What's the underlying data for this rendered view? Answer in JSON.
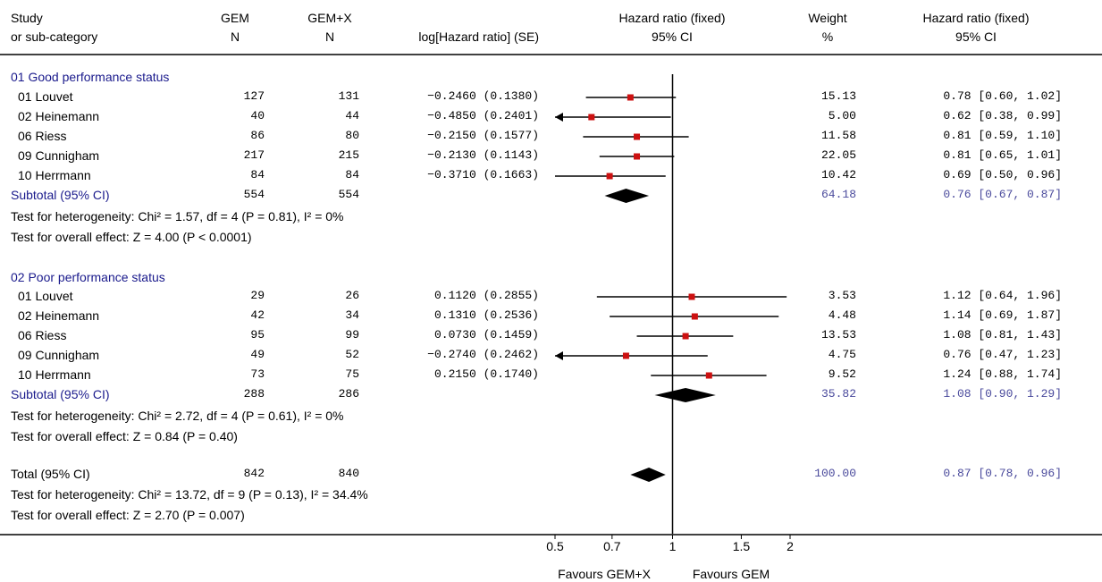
{
  "header": {
    "study": "Study",
    "subcat": "or sub-category",
    "gem": "GEM",
    "gem_n": "N",
    "gemx": "GEM+X",
    "gemx_n": "N",
    "loghr": "log[Hazard ratio] (SE)",
    "hr_fixed": "Hazard ratio (fixed)",
    "ci95": "95% CI",
    "weight": "Weight",
    "weight_pct": "%",
    "hr_fixed2": "Hazard ratio (fixed)",
    "ci95_2": "95% CI"
  },
  "groups": [
    {
      "title": "01 Good performance status",
      "studies": [
        {
          "name": "01 Louvet",
          "gem": "127",
          "gemx": "131",
          "loghr": "−0.2460 (0.1380)",
          "weight": "15.13",
          "hrci": "0.78 [0.60, 1.02]"
        },
        {
          "name": "02 Heinemann",
          "gem": "40",
          "gemx": "44",
          "loghr": "−0.4850 (0.2401)",
          "weight": "5.00",
          "hrci": "0.62 [0.38, 0.99]"
        },
        {
          "name": "06 Riess",
          "gem": "86",
          "gemx": "80",
          "loghr": "−0.2150 (0.1577)",
          "weight": "11.58",
          "hrci": "0.81 [0.59, 1.10]"
        },
        {
          "name": "09 Cunnigham",
          "gem": "217",
          "gemx": "215",
          "loghr": "−0.2130 (0.1143)",
          "weight": "22.05",
          "hrci": "0.81 [0.65, 1.01]"
        },
        {
          "name": "10 Herrmann",
          "gem": "84",
          "gemx": "84",
          "loghr": "−0.3710 (0.1663)",
          "weight": "10.42",
          "hrci": "0.69 [0.50, 0.96]"
        }
      ],
      "subtotal": {
        "label": "Subtotal (95% CI)",
        "gem": "554",
        "gemx": "554",
        "weight": "64.18",
        "hrci": "0.76 [0.67, 0.87]"
      },
      "het": "Test for heterogeneity: Chi² = 1.57, df = 4 (P = 0.81), I² = 0%",
      "overall": "Test for overall effect: Z = 4.00 (P < 0.0001)"
    },
    {
      "title": "02 Poor performance status",
      "studies": [
        {
          "name": "01 Louvet",
          "gem": "29",
          "gemx": "26",
          "loghr": "0.1120 (0.2855)",
          "weight": "3.53",
          "hrci": "1.12 [0.64, 1.96]"
        },
        {
          "name": "02 Heinemann",
          "gem": "42",
          "gemx": "34",
          "loghr": "0.1310 (0.2536)",
          "weight": "4.48",
          "hrci": "1.14 [0.69, 1.87]"
        },
        {
          "name": "06 Riess",
          "gem": "95",
          "gemx": "99",
          "loghr": "0.0730 (0.1459)",
          "weight": "13.53",
          "hrci": "1.08 [0.81, 1.43]"
        },
        {
          "name": "09 Cunnigham",
          "gem": "49",
          "gemx": "52",
          "loghr": "−0.2740 (0.2462)",
          "weight": "4.75",
          "hrci": "0.76 [0.47, 1.23]"
        },
        {
          "name": "10 Herrmann",
          "gem": "73",
          "gemx": "75",
          "loghr": "0.2150 (0.1740)",
          "weight": "9.52",
          "hrci": "1.24 [0.88, 1.74]"
        }
      ],
      "subtotal": {
        "label": "Subtotal (95% CI)",
        "gem": "288",
        "gemx": "286",
        "weight": "35.82",
        "hrci": "1.08 [0.90, 1.29]"
      },
      "het": "Test for heterogeneity: Chi² = 2.72, df = 4 (P = 0.61), I² = 0%",
      "overall": "Test for overall effect: Z = 0.84 (P = 0.40)"
    }
  ],
  "total": {
    "label": "Total (95% CI)",
    "gem": "842",
    "gemx": "840",
    "weight": "100.00",
    "hrci": "0.87 [0.78, 0.96]",
    "het": "Test for heterogeneity: Chi² = 13.72, df = 9 (P = 0.13), I² = 34.4%",
    "overall": "Test for overall effect: Z = 2.70 (P = 0.007)"
  },
  "axis": {
    "favours_left": "Favours GEM+X",
    "favours_right": "Favours GEM"
  },
  "colors": {
    "marker": "#cc1111",
    "group_title": "#1a1a8c",
    "subtotal_values": "#4a4a9c"
  },
  "chart_data": {
    "type": "forest",
    "x_scale": "log",
    "xlim": [
      0.5,
      2
    ],
    "ticks": [
      "0.5",
      "0.7",
      "1",
      "1.5",
      "2"
    ],
    "tick_values": [
      0.5,
      0.7,
      1,
      1.5,
      2
    ],
    "reference_line": 1,
    "series": [
      {
        "group": "01 Good performance status",
        "study": "01 Louvet",
        "hr": 0.78,
        "lo": 0.6,
        "hi": 1.02,
        "weight": 15.13
      },
      {
        "group": "01 Good performance status",
        "study": "02 Heinemann",
        "hr": 0.62,
        "lo": 0.38,
        "hi": 0.99,
        "weight": 5.0
      },
      {
        "group": "01 Good performance status",
        "study": "06 Riess",
        "hr": 0.81,
        "lo": 0.59,
        "hi": 1.1,
        "weight": 11.58
      },
      {
        "group": "01 Good performance status",
        "study": "09 Cunnigham",
        "hr": 0.81,
        "lo": 0.65,
        "hi": 1.01,
        "weight": 22.05
      },
      {
        "group": "01 Good performance status",
        "study": "10 Herrmann",
        "hr": 0.69,
        "lo": 0.5,
        "hi": 0.96,
        "weight": 10.42
      },
      {
        "group": "02 Poor performance status",
        "study": "01 Louvet",
        "hr": 1.12,
        "lo": 0.64,
        "hi": 1.96,
        "weight": 3.53
      },
      {
        "group": "02 Poor performance status",
        "study": "02 Heinemann",
        "hr": 1.14,
        "lo": 0.69,
        "hi": 1.87,
        "weight": 4.48
      },
      {
        "group": "02 Poor performance status",
        "study": "06 Riess",
        "hr": 1.08,
        "lo": 0.81,
        "hi": 1.43,
        "weight": 13.53
      },
      {
        "group": "02 Poor performance status",
        "study": "09 Cunnigham",
        "hr": 0.76,
        "lo": 0.47,
        "hi": 1.23,
        "weight": 4.75
      },
      {
        "group": "02 Poor performance status",
        "study": "10 Herrmann",
        "hr": 1.24,
        "lo": 0.88,
        "hi": 1.74,
        "weight": 9.52
      }
    ],
    "subtotals": [
      {
        "label": "01 Good performance status",
        "hr": 0.76,
        "lo": 0.67,
        "hi": 0.87
      },
      {
        "label": "02 Poor performance status",
        "hr": 1.08,
        "lo": 0.9,
        "hi": 1.29
      }
    ],
    "total": {
      "hr": 0.87,
      "lo": 0.78,
      "hi": 0.96
    }
  }
}
